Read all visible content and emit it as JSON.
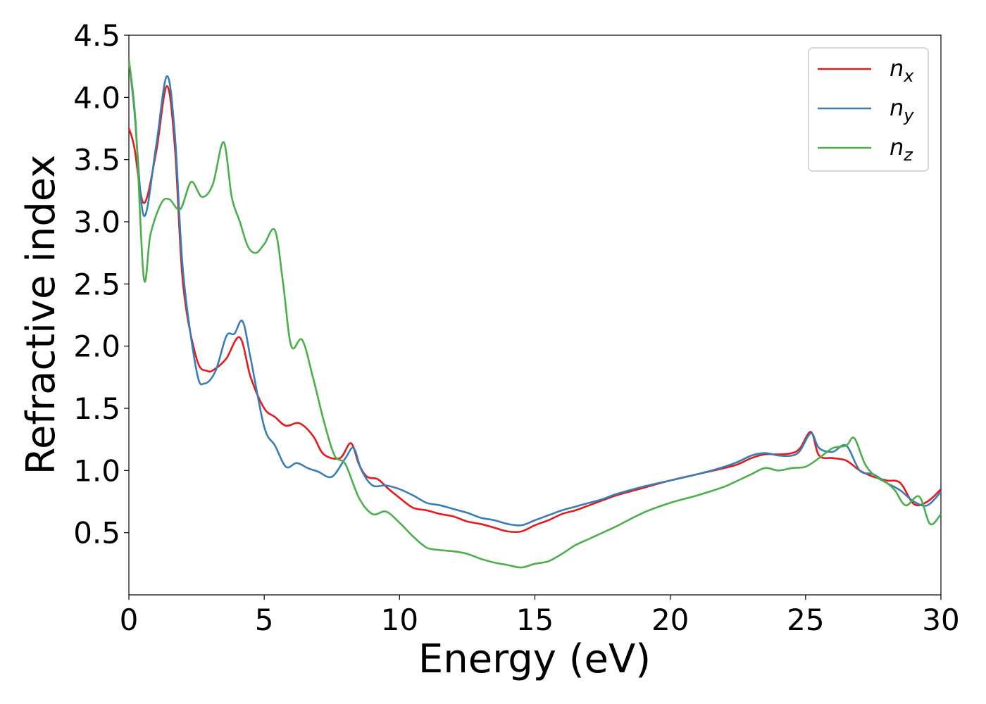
{
  "chart_data": {
    "type": "line",
    "title": "",
    "xlabel": "Energy (eV)",
    "ylabel": "Refractive index",
    "xlim": [
      0,
      30
    ],
    "ylim": [
      0,
      4.5
    ],
    "xticks": [
      0,
      5,
      10,
      15,
      20,
      25,
      30
    ],
    "xtick_labels": [
      "0",
      "5",
      "10",
      "15",
      "20",
      "25",
      "30"
    ],
    "yticks": [
      0.5,
      1.0,
      1.5,
      2.0,
      2.5,
      3.0,
      3.5,
      4.0,
      4.5
    ],
    "ytick_labels": [
      "0.5",
      "1.0",
      "1.5",
      "2.0",
      "2.5",
      "3.0",
      "3.5",
      "4.0",
      "4.5"
    ],
    "grid": false,
    "legend_position": "top-right",
    "series": [
      {
        "name": "n",
        "subscript": "x",
        "color": "#e41a1c",
        "x": [
          0,
          0.2,
          0.55,
          1.0,
          1.4,
          1.7,
          2.0,
          2.5,
          2.9,
          3.2,
          3.6,
          4.1,
          4.5,
          5.0,
          5.4,
          5.8,
          6.3,
          6.8,
          7.2,
          7.8,
          8.2,
          8.5,
          8.8,
          9.2,
          9.6,
          10.0,
          10.5,
          11.0,
          11.5,
          12.0,
          12.5,
          13.0,
          13.5,
          14.0,
          14.5,
          15.0,
          15.5,
          16.0,
          16.5,
          17.0,
          17.5,
          18.0,
          19.0,
          20.0,
          21.0,
          22.0,
          22.5,
          23.0,
          23.5,
          24.0,
          24.5,
          24.8,
          25.2,
          25.5,
          26.0,
          26.5,
          27.0,
          27.5,
          28.0,
          28.5,
          29.0,
          29.5,
          30.0
        ],
        "y": [
          3.75,
          3.6,
          3.15,
          3.55,
          4.09,
          3.6,
          2.5,
          1.9,
          1.8,
          1.82,
          1.9,
          2.07,
          1.75,
          1.5,
          1.43,
          1.36,
          1.38,
          1.28,
          1.13,
          1.1,
          1.22,
          1.05,
          0.95,
          0.93,
          0.85,
          0.78,
          0.7,
          0.68,
          0.65,
          0.63,
          0.59,
          0.57,
          0.54,
          0.51,
          0.51,
          0.56,
          0.6,
          0.65,
          0.68,
          0.72,
          0.76,
          0.8,
          0.86,
          0.92,
          0.97,
          1.02,
          1.05,
          1.1,
          1.13,
          1.13,
          1.14,
          1.18,
          1.31,
          1.12,
          1.1,
          1.08,
          1.0,
          0.95,
          0.92,
          0.9,
          0.73,
          0.75,
          0.85
        ]
      },
      {
        "name": "n",
        "subscript": "y",
        "color": "#377eb8",
        "x": [
          0,
          0.2,
          0.55,
          1.0,
          1.4,
          1.7,
          2.0,
          2.5,
          2.8,
          3.2,
          3.6,
          3.9,
          4.2,
          4.5,
          5.0,
          5.4,
          5.8,
          6.2,
          6.6,
          7.0,
          7.5,
          8.0,
          8.3,
          8.6,
          9.0,
          9.5,
          10.0,
          10.5,
          11.0,
          11.5,
          12.0,
          12.5,
          13.0,
          13.5,
          14.0,
          14.5,
          15.0,
          15.5,
          16.0,
          16.5,
          17.0,
          17.5,
          18.0,
          19.0,
          20.0,
          21.0,
          22.0,
          22.5,
          23.0,
          23.5,
          24.0,
          24.5,
          24.8,
          25.2,
          25.5,
          26.0,
          26.5,
          27.0,
          27.5,
          28.0,
          28.5,
          29.0,
          29.5,
          30.0
        ],
        "y": [
          4.3,
          3.9,
          3.05,
          3.6,
          4.17,
          3.7,
          2.6,
          1.8,
          1.7,
          1.8,
          2.08,
          2.1,
          2.2,
          1.9,
          1.35,
          1.2,
          1.03,
          1.06,
          1.02,
          0.99,
          0.95,
          1.1,
          1.18,
          1.0,
          0.88,
          0.88,
          0.85,
          0.8,
          0.74,
          0.72,
          0.69,
          0.66,
          0.62,
          0.6,
          0.57,
          0.56,
          0.6,
          0.64,
          0.68,
          0.71,
          0.74,
          0.77,
          0.81,
          0.87,
          0.92,
          0.97,
          1.03,
          1.07,
          1.12,
          1.14,
          1.12,
          1.12,
          1.16,
          1.3,
          1.18,
          1.15,
          1.2,
          1.0,
          0.97,
          0.9,
          0.84,
          0.75,
          0.72,
          0.83
        ]
      },
      {
        "name": "n",
        "subscript": "z",
        "color": "#4daf4a",
        "x": [
          0,
          0.25,
          0.55,
          0.8,
          1.2,
          1.5,
          1.9,
          2.3,
          2.7,
          3.1,
          3.5,
          3.8,
          4.1,
          4.4,
          4.7,
          5.0,
          5.4,
          5.7,
          6.0,
          6.4,
          6.8,
          7.2,
          7.6,
          8.0,
          8.5,
          9.0,
          9.5,
          10.0,
          10.5,
          11.0,
          11.5,
          12.0,
          12.5,
          13.0,
          13.5,
          14.0,
          14.5,
          15.0,
          15.5,
          16.0,
          16.5,
          17.0,
          17.5,
          18.0,
          19.0,
          20.0,
          21.0,
          22.0,
          22.5,
          23.0,
          23.5,
          24.0,
          24.5,
          25.0,
          25.5,
          26.0,
          26.5,
          26.8,
          27.2,
          27.6,
          28.0,
          28.3,
          28.7,
          29.2,
          29.6,
          30.0
        ],
        "y": [
          4.3,
          3.8,
          2.55,
          2.9,
          3.15,
          3.18,
          3.1,
          3.32,
          3.2,
          3.3,
          3.64,
          3.2,
          3.0,
          2.8,
          2.75,
          2.82,
          2.93,
          2.5,
          2.0,
          2.05,
          1.75,
          1.4,
          1.12,
          1.05,
          0.78,
          0.65,
          0.67,
          0.58,
          0.47,
          0.38,
          0.36,
          0.35,
          0.33,
          0.29,
          0.26,
          0.24,
          0.22,
          0.25,
          0.27,
          0.33,
          0.4,
          0.45,
          0.5,
          0.55,
          0.66,
          0.74,
          0.8,
          0.87,
          0.92,
          0.97,
          1.02,
          1.0,
          1.02,
          1.03,
          1.1,
          1.18,
          1.2,
          1.26,
          1.05,
          0.95,
          0.9,
          0.84,
          0.72,
          0.79,
          0.57,
          0.65
        ]
      }
    ]
  }
}
